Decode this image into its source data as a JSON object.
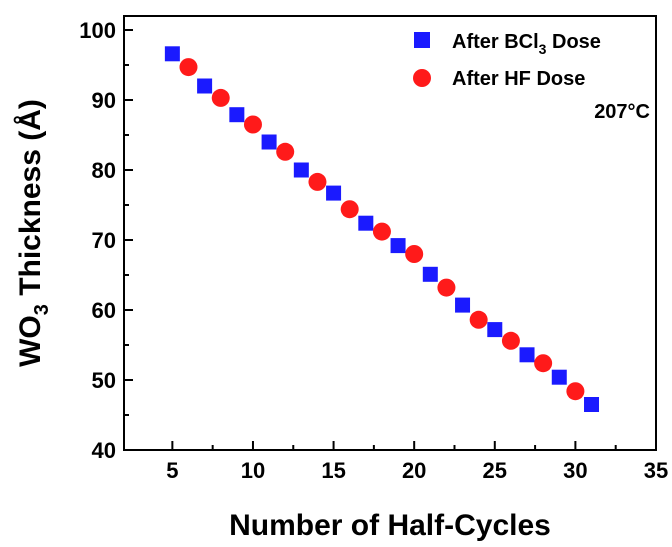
{
  "chart_data": {
    "type": "scatter",
    "title": "",
    "xlabel": "Number of Half-Cycles",
    "ylabel": {
      "pre": "WO",
      "sub": "3",
      "post": " Thickness (Å)"
    },
    "xlim": [
      2,
      35
    ],
    "ylim": [
      40,
      102
    ],
    "xticks": [
      5,
      10,
      15,
      20,
      25,
      30,
      35
    ],
    "yticks": [
      40,
      50,
      60,
      70,
      80,
      90,
      100
    ],
    "grid": false,
    "legend_position": "top-right",
    "annotation": "207°C",
    "series": [
      {
        "name": {
          "pre": "After BCl",
          "sub": "3",
          "post": " Dose"
        },
        "marker": "square",
        "color": "#1a1aff",
        "x": [
          5,
          7,
          9,
          11,
          13,
          15,
          17,
          19,
          21,
          23,
          25,
          27,
          29,
          31
        ],
        "y": [
          96.6,
          92.0,
          87.9,
          84.0,
          80.0,
          76.7,
          72.4,
          69.2,
          65.1,
          60.7,
          57.2,
          53.6,
          50.4,
          46.5
        ]
      },
      {
        "name": {
          "pre": "After HF Dose",
          "sub": "",
          "post": ""
        },
        "marker": "circle",
        "color": "#ff1a1a",
        "x": [
          6,
          8,
          10,
          12,
          14,
          16,
          18,
          20,
          22,
          24,
          26,
          28,
          30
        ],
        "y": [
          94.7,
          90.3,
          86.5,
          82.6,
          78.3,
          74.4,
          71.2,
          68.0,
          63.2,
          58.6,
          55.6,
          52.4,
          48.4
        ]
      }
    ]
  }
}
